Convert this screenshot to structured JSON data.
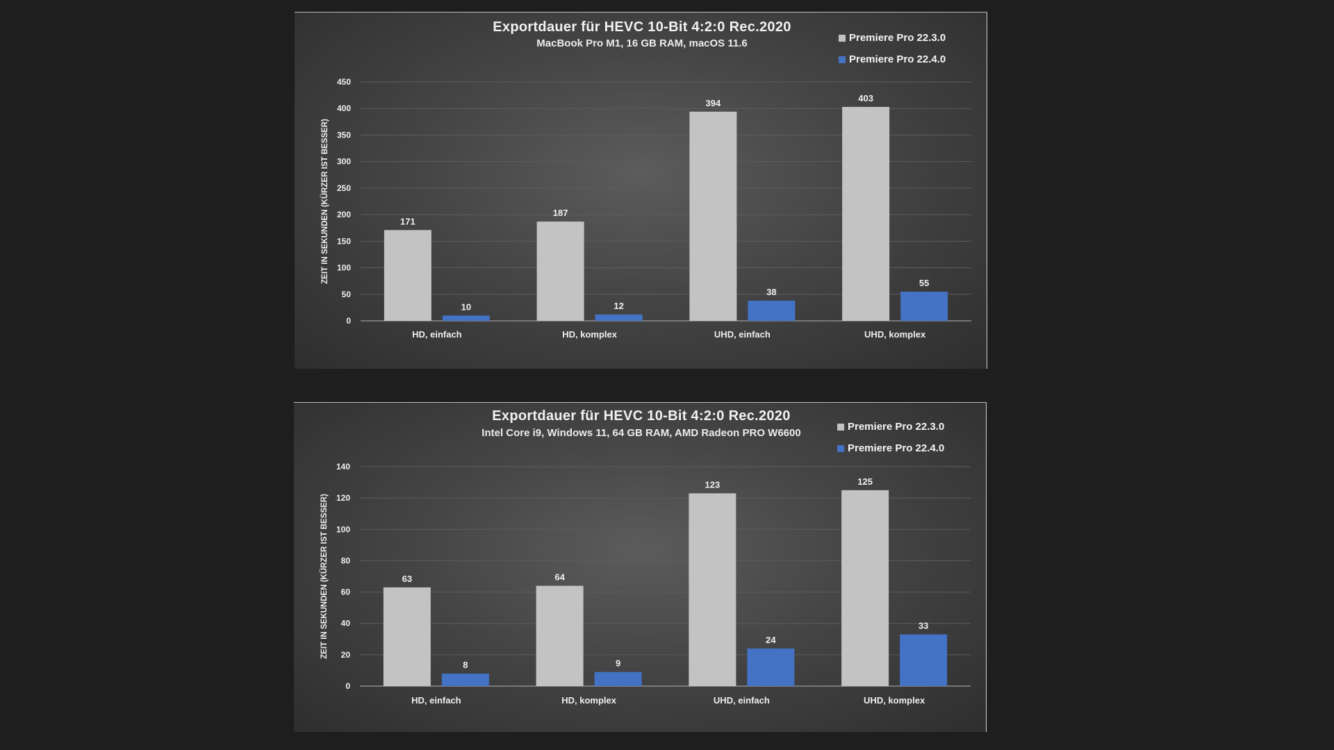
{
  "colors": {
    "series_old": "#c3c3c3",
    "series_new": "#4472c4",
    "text": "#f0f0f0",
    "grid": "#5d5d5d",
    "axis": "#8c8c8c"
  },
  "charts": [
    {
      "title": "Exportdauer für HEVC 10-Bit 4:2:0 Rec.2020",
      "subtitle": "MacBook Pro M1, 16 GB RAM, macOS 11.6",
      "legend": [
        "Premiere Pro 22.3.0",
        "Premiere Pro 22.4.0"
      ]
    },
    {
      "title": "Exportdauer für HEVC 10-Bit 4:2:0 Rec.2020",
      "subtitle": "Intel Core i9, Windows 11, 64 GB RAM, AMD Radeon PRO W6600",
      "legend": [
        "Premiere Pro 22.3.0",
        "Premiere Pro 22.4.0"
      ]
    }
  ],
  "chart_data": [
    {
      "type": "bar",
      "title": "Exportdauer für HEVC 10-Bit 4:2:0 Rec.2020",
      "subtitle": "MacBook Pro M1, 16 GB RAM, macOS 11.6",
      "categories": [
        "HD, einfach",
        "HD, komplex",
        "UHD, einfach",
        "UHD, komplex"
      ],
      "series": [
        {
          "name": "Premiere Pro 22.3.0",
          "values": [
            171,
            187,
            394,
            403
          ]
        },
        {
          "name": "Premiere Pro 22.4.0",
          "values": [
            10,
            12,
            38,
            55
          ]
        }
      ],
      "ylabel": "ZEIT IN SEKUNDEN (KÜRZER IST BESSER)",
      "xlabel": "",
      "ylim": [
        0,
        450
      ],
      "yticks": [
        0,
        50,
        100,
        150,
        200,
        250,
        300,
        350,
        400,
        450
      ],
      "grid": true,
      "legend_position": "top-right"
    },
    {
      "type": "bar",
      "title": "Exportdauer für HEVC 10-Bit 4:2:0 Rec.2020",
      "subtitle": "Intel Core i9, Windows 11, 64 GB RAM, AMD Radeon PRO W6600",
      "categories": [
        "HD, einfach",
        "HD, komplex",
        "UHD, einfach",
        "UHD, komplex"
      ],
      "series": [
        {
          "name": "Premiere Pro 22.3.0",
          "values": [
            63,
            64,
            123,
            125
          ]
        },
        {
          "name": "Premiere Pro 22.4.0",
          "values": [
            8,
            9,
            24,
            33
          ]
        }
      ],
      "ylabel": "ZEIT IN SEKUNDEN (KÜRZER IST BESSER)",
      "xlabel": "",
      "ylim": [
        0,
        140
      ],
      "yticks": [
        0,
        20,
        40,
        60,
        80,
        100,
        120,
        140
      ],
      "grid": true,
      "legend_position": "top-right"
    }
  ]
}
